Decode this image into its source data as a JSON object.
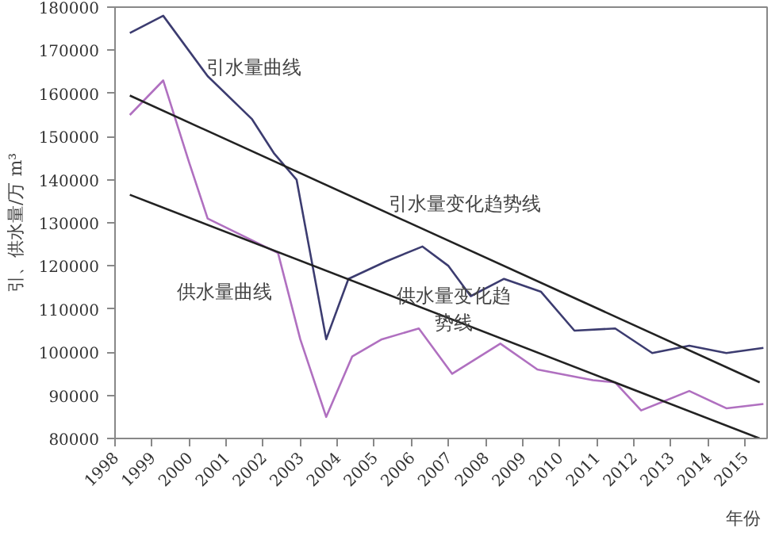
{
  "chart_data": {
    "type": "line",
    "xlabel": "年份",
    "ylabel": "引、供水量/万 m³",
    "xlim": [
      1998,
      2015.6
    ],
    "xticks": [
      1998,
      1999,
      2000,
      2001,
      2002,
      2003,
      2004,
      2005,
      2006,
      2007,
      2008,
      2009,
      2010,
      2011,
      2012,
      2013,
      2014,
      2015
    ],
    "ylim": [
      80000,
      180000
    ],
    "yticks": [
      80000,
      90000,
      100000,
      110000,
      120000,
      130000,
      140000,
      150000,
      160000,
      170000,
      180000
    ],
    "grid": false,
    "marker": "none",
    "line_style": "solid",
    "series": [
      {
        "color": "#3c3c70",
        "x": [
          1998.4,
          1999.3,
          2000.5,
          2001.7,
          2002.3,
          2002.9,
          2003.7,
          2004.3,
          2005.3,
          2006.3,
          2007.0,
          2007.6,
          2008.5,
          2009.5,
          2010.4,
          2011.5,
          2012.5,
          2013.5,
          2014.5,
          2015.5
        ],
        "values": [
          174000,
          178000,
          164000,
          154000,
          146000,
          140000,
          103000,
          117000,
          121000,
          124500,
          120000,
          113000,
          117000,
          114000,
          105000,
          105500,
          99800,
          101500,
          99800,
          101000
        ]
      },
      {
        "color": "#b070c0",
        "x": [
          1998.4,
          1999.3,
          2000.0,
          2000.5,
          2002.4,
          2003.0,
          2003.7,
          2004.4,
          2005.2,
          2006.2,
          2007.1,
          2008.4,
          2009.4,
          2010.9,
          2011.5,
          2012.2,
          2013.5,
          2014.5,
          2015.5
        ],
        "values": [
          155000,
          163000,
          144000,
          131000,
          123000,
          103000,
          85000,
          99000,
          103000,
          105500,
          95000,
          102000,
          96000,
          93500,
          93000,
          86500,
          91000,
          87000,
          88000
        ]
      },
      {
        "color": "#222222",
        "x": [
          1998.4,
          2015.4
        ],
        "values": [
          159500,
          93000
        ]
      },
      {
        "color": "#222222",
        "x": [
          1998.4,
          2015.4
        ],
        "values": [
          136500,
          80000
        ]
      }
    ],
    "annotations": [
      "引水量曲线",
      "引水量变化趋势线",
      "供水量曲线",
      "供水量变化趋势线"
    ]
  }
}
